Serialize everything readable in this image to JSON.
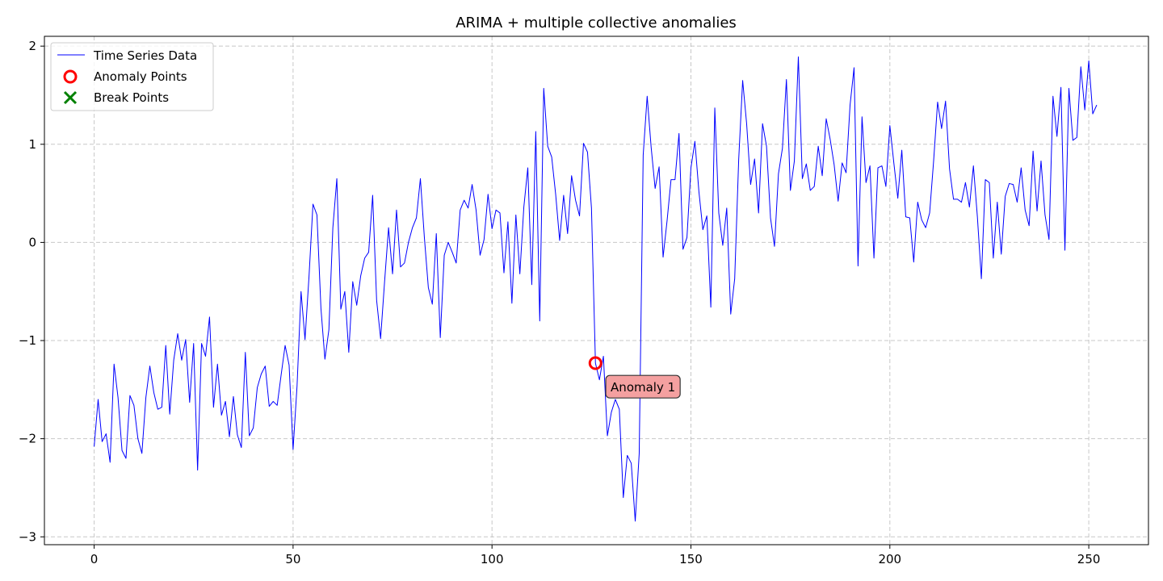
{
  "chart_data": {
    "type": "line",
    "title": "ARIMA + multiple collective anomalies",
    "xlabel": "",
    "ylabel": "",
    "xlim": [
      -12.5,
      265
    ],
    "ylim": [
      -3.08,
      2.1
    ],
    "xticks": [
      0,
      50,
      100,
      150,
      200,
      250
    ],
    "yticks": [
      -3,
      -2,
      -1,
      0,
      1,
      2
    ],
    "xtick_labels": [
      "0",
      "50",
      "100",
      "150",
      "200",
      "250"
    ],
    "ytick_labels": [
      "−3",
      "−2",
      "−1",
      "0",
      "1",
      "2"
    ],
    "grid": true,
    "legend_position": "top-left",
    "legend": [
      {
        "label": "Time Series Data",
        "marker": "line",
        "color": "#0000ff"
      },
      {
        "label": "Anomaly Points",
        "marker": "circle",
        "color": "#ff0000"
      },
      {
        "label": "Break Points",
        "marker": "x",
        "color": "#008000"
      }
    ],
    "series": [
      {
        "name": "Time Series Data",
        "color": "#0000ff",
        "x_start": 0,
        "values": [
          -2.08,
          -1.6,
          -2.03,
          -1.95,
          -2.24,
          -1.24,
          -1.58,
          -2.12,
          -2.2,
          -1.56,
          -1.66,
          -2.0,
          -2.15,
          -1.58,
          -1.26,
          -1.53,
          -1.7,
          -1.68,
          -1.05,
          -1.75,
          -1.2,
          -0.93,
          -1.2,
          -0.99,
          -1.63,
          -1.03,
          -2.32,
          -1.03,
          -1.16,
          -0.76,
          -1.68,
          -1.24,
          -1.76,
          -1.62,
          -1.98,
          -1.57,
          -1.96,
          -2.09,
          -1.12,
          -1.97,
          -1.89,
          -1.48,
          -1.34,
          -1.26,
          -1.67,
          -1.62,
          -1.66,
          -1.35,
          -1.05,
          -1.25,
          -2.11,
          -1.46,
          -0.5,
          -0.99,
          -0.35,
          0.39,
          0.28,
          -0.67,
          -1.19,
          -0.89,
          0.15,
          0.65,
          -0.68,
          -0.5,
          -1.12,
          -0.4,
          -0.64,
          -0.34,
          -0.16,
          -0.1,
          0.48,
          -0.59,
          -0.98,
          -0.4,
          0.15,
          -0.32,
          0.33,
          -0.25,
          -0.21,
          0.0,
          0.15,
          0.25,
          0.65,
          0.05,
          -0.46,
          -0.63,
          0.09,
          -0.97,
          -0.13,
          0.0,
          -0.1,
          -0.21,
          0.33,
          0.43,
          0.35,
          0.59,
          0.33,
          -0.13,
          0.03,
          0.49,
          0.14,
          0.33,
          0.3,
          -0.31,
          0.21,
          -0.62,
          0.28,
          -0.32,
          0.36,
          0.76,
          -0.43,
          1.13,
          -0.8,
          1.57,
          0.98,
          0.87,
          0.49,
          0.02,
          0.48,
          0.09,
          0.68,
          0.43,
          0.27,
          1.01,
          0.92,
          0.35,
          -1.23,
          -1.4,
          -1.16,
          -1.97,
          -1.73,
          -1.6,
          -1.7,
          -2.6,
          -2.17,
          -2.25,
          -2.84,
          -2.15,
          0.89,
          1.49,
          0.97,
          0.55,
          0.77,
          -0.15,
          0.22,
          0.64,
          0.64,
          1.11,
          -0.07,
          0.05,
          0.76,
          1.03,
          0.52,
          0.13,
          0.27,
          -0.66,
          1.37,
          0.3,
          -0.03,
          0.35,
          -0.73,
          -0.37,
          0.84,
          1.65,
          1.21,
          0.59,
          0.85,
          0.3,
          1.21,
          0.98,
          0.25,
          -0.04,
          0.7,
          0.96,
          1.66,
          0.53,
          0.83,
          1.89,
          0.65,
          0.8,
          0.53,
          0.57,
          0.98,
          0.68,
          1.26,
          1.05,
          0.79,
          0.42,
          0.81,
          0.71,
          1.4,
          1.78,
          -0.24,
          1.28,
          0.61,
          0.78,
          -0.16,
          0.76,
          0.78,
          0.57,
          1.19,
          0.81,
          0.45,
          0.94,
          0.26,
          0.25,
          -0.2,
          0.41,
          0.23,
          0.15,
          0.3,
          0.83,
          1.43,
          1.16,
          1.44,
          0.75,
          0.44,
          0.44,
          0.41,
          0.61,
          0.36,
          0.78,
          0.26,
          -0.37,
          0.64,
          0.61,
          -0.16,
          0.41,
          -0.12,
          0.47,
          0.6,
          0.59,
          0.41,
          0.76,
          0.33,
          0.17,
          0.93,
          0.32,
          0.83,
          0.28,
          0.03,
          1.49,
          1.08,
          1.58,
          -0.08,
          1.57,
          1.04,
          1.07,
          1.79,
          1.35,
          1.85,
          1.31,
          1.4
        ]
      }
    ],
    "anomaly_points": [
      {
        "x": 126,
        "y": -1.23
      }
    ],
    "break_points": [],
    "annotations": [
      {
        "text": "Anomaly 1",
        "x": 129,
        "y": -1.47
      }
    ]
  }
}
